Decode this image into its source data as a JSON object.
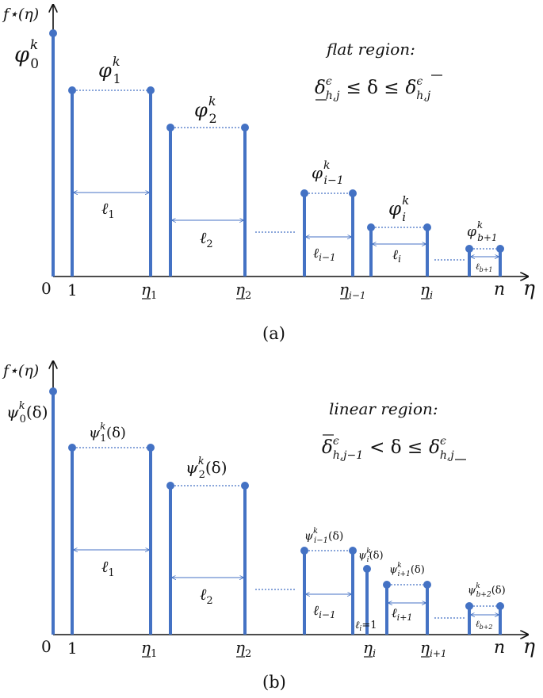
{
  "panel_a": {
    "y_label": "f⋆(η)",
    "x_label": "η",
    "origin": "0",
    "x_ticks": [
      {
        "label": "1",
        "sub": ""
      },
      {
        "label": "η",
        "sub": "1",
        "underline": true
      },
      {
        "label": "η",
        "sub": "2",
        "underline": true
      },
      {
        "label": "η",
        "sub": "i−1",
        "underline": true
      },
      {
        "label": "η",
        "sub": "i",
        "underline": true
      },
      {
        "label": "n",
        "sub": ""
      }
    ],
    "region_title": "flat region:",
    "region_condition": {
      "lhs": "δ",
      "lhs_sup": "ϵ",
      "lhs_sub": "h,j",
      "mid": "≤ δ ≤",
      "rhs": "δ",
      "rhs_sup": "ϵ",
      "rhs_sub": "h,j"
    },
    "step_labels": [
      {
        "base": "φ",
        "sup": "k",
        "sub": "0"
      },
      {
        "base": "φ",
        "sup": "k",
        "sub": "1"
      },
      {
        "base": "φ",
        "sup": "k",
        "sub": "2"
      },
      {
        "base": "φ",
        "sup": "k",
        "sub": "i−1"
      },
      {
        "base": "φ",
        "sup": "k",
        "sub": "i"
      },
      {
        "base": "φ",
        "sup": "k",
        "sub": "b+1"
      }
    ],
    "length_labels": [
      {
        "base": "ℓ",
        "sub": "1"
      },
      {
        "base": "ℓ",
        "sub": "2"
      },
      {
        "base": "ℓ",
        "sub": "i−1"
      },
      {
        "base": "ℓ",
        "sub": "i"
      },
      {
        "base": "ℓ",
        "sub": "b+1"
      }
    ],
    "caption": "(a)"
  },
  "panel_b": {
    "y_label": "f⋆(η)",
    "x_label": "η",
    "origin": "0",
    "x_ticks": [
      {
        "label": "1",
        "sub": ""
      },
      {
        "label": "η",
        "sub": "1",
        "underline": true
      },
      {
        "label": "η",
        "sub": "2",
        "underline": true
      },
      {
        "label": "η",
        "sub": "i",
        "underline": true
      },
      {
        "label": "η",
        "sub": "i+1",
        "underline": true
      },
      {
        "label": "n",
        "sub": ""
      }
    ],
    "region_title": "linear region:",
    "region_condition": {
      "lhs": "δ",
      "lhs_sup": "ϵ",
      "lhs_sub": "h,j−1",
      "mid": "< δ ≤",
      "rhs": "δ",
      "rhs_sup": "ϵ",
      "rhs_sub": "h,j"
    },
    "step_labels": [
      {
        "base": "ψ",
        "sup": "k",
        "sub": "0",
        "arg": "(δ)"
      },
      {
        "base": "ψ",
        "sup": "k",
        "sub": "1",
        "arg": "(δ)"
      },
      {
        "base": "ψ",
        "sup": "k",
        "sub": "2",
        "arg": "(δ)"
      },
      {
        "base": "ψ",
        "sup": "k",
        "sub": "i−1",
        "arg": "(δ)"
      },
      {
        "base": "ψ",
        "sup": "k",
        "sub": "i",
        "arg": "(δ)"
      },
      {
        "base": "ψ",
        "sup": "k",
        "sub": "i+1",
        "arg": "(δ)"
      },
      {
        "base": "ψ",
        "sup": "k",
        "sub": "b+2",
        "arg": "(δ)"
      }
    ],
    "length_labels": [
      {
        "base": "ℓ",
        "sub": "1"
      },
      {
        "base": "ℓ",
        "sub": "2"
      },
      {
        "base": "ℓ",
        "sub": "i−1"
      },
      {
        "base": "ℓ",
        "sub": "i",
        "suffix": "=1"
      },
      {
        "base": "ℓ",
        "sub": "i+1"
      },
      {
        "base": "ℓ",
        "sub": "b+2"
      }
    ],
    "caption": "(b)"
  }
}
